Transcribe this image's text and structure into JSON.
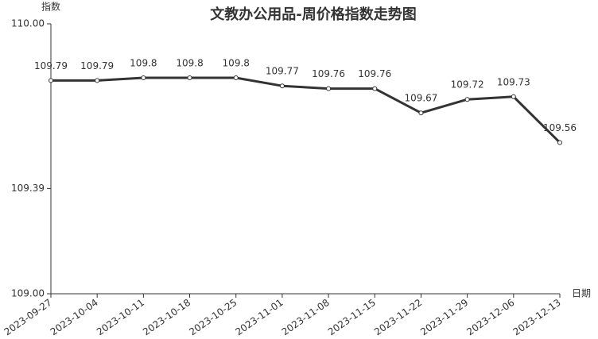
{
  "chart_data": {
    "type": "line",
    "title": "文教办公用品-周价格指数走势图",
    "y_label": "指数",
    "x_label": "日期",
    "categories": [
      "2023-09-27",
      "2023-10-04",
      "2023-10-11",
      "2023-10-18",
      "2023-10-25",
      "2023-11-01",
      "2023-11-08",
      "2023-11-15",
      "2023-11-22",
      "2023-11-29",
      "2023-12-06",
      "2023-12-13"
    ],
    "values": [
      109.79,
      109.79,
      109.8,
      109.8,
      109.8,
      109.77,
      109.76,
      109.76,
      109.67,
      109.72,
      109.73,
      109.56
    ],
    "color": "#333333",
    "ylim": [
      109,
      110
    ],
    "yticks": [
      {
        "value": 109,
        "label": "109.00"
      },
      109.39,
      {
        "value": 110,
        "label": "110.00"
      }
    ],
    "grid": false
  }
}
